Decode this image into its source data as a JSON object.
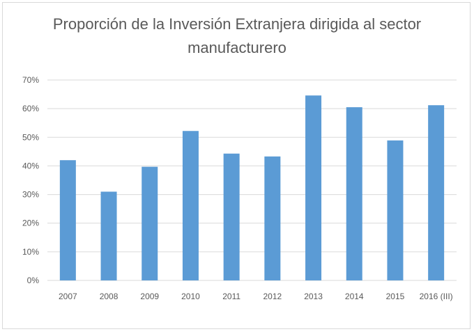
{
  "chart_data": {
    "type": "bar",
    "title_line1": "Proporción de la Inversión Extranjera dirigida al sector",
    "title_line2": "manufacturero",
    "xlabel": "",
    "ylabel": "",
    "categories": [
      "2007",
      "2008",
      "2009",
      "2010",
      "2011",
      "2012",
      "2013",
      "2014",
      "2015",
      "2016 (III)"
    ],
    "values": [
      42,
      31,
      39.7,
      52.2,
      44.3,
      43.3,
      64.6,
      60.5,
      48.9,
      61.2
    ],
    "unit": "%",
    "ylim": [
      0,
      70
    ],
    "yticks": [
      0,
      10,
      20,
      30,
      40,
      50,
      60,
      70
    ],
    "ytick_labels": [
      "0%",
      "10%",
      "20%",
      "30%",
      "40%",
      "50%",
      "60%",
      "70%"
    ],
    "grid": true,
    "legend": "none",
    "bar_color": "#5b9bd5",
    "grid_color": "#d9d9d9"
  }
}
